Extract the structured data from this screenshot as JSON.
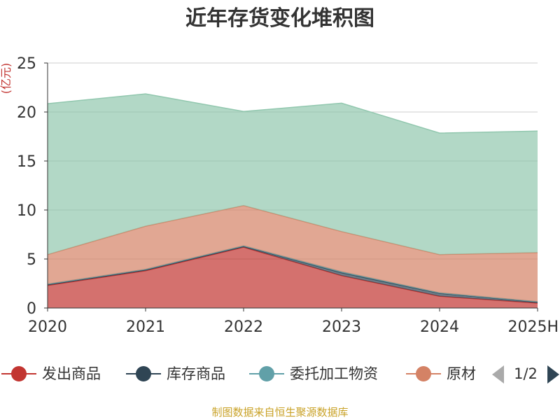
{
  "chart_data": {
    "type": "area",
    "stacked": true,
    "title": "近年存货变化堆积图",
    "ylabel": "(亿元)",
    "ylim": [
      0,
      25
    ],
    "yticks": [
      0,
      5,
      10,
      15,
      20,
      25
    ],
    "categories": [
      "2020",
      "2021",
      "2022",
      "2023",
      "2024",
      "2025H"
    ],
    "grid": true,
    "series": [
      {
        "name": "发出商品",
        "color": "#c23531",
        "values": [
          2.3,
          3.8,
          6.2,
          3.3,
          1.2,
          0.5
        ]
      },
      {
        "name": "库存商品",
        "color": "#2f4554",
        "values": [
          0.1,
          0.1,
          0.1,
          0.3,
          0.3,
          0.1
        ]
      },
      {
        "name": "委托加工物资",
        "color": "#61a0a8",
        "values": [
          0.05,
          0.05,
          0.05,
          0.1,
          0.05,
          0.05
        ]
      },
      {
        "name": "原材料",
        "color": "#d48265",
        "values": [
          3.0,
          4.4,
          4.1,
          4.1,
          3.9,
          5.0
        ]
      },
      {
        "name": "",
        "color": "#91c7ae",
        "values": [
          15.4,
          13.5,
          9.6,
          13.1,
          12.4,
          12.4
        ]
      }
    ],
    "legend": {
      "position": "bottom",
      "visible_labels": [
        "发出商品",
        "库存商品",
        "委托加工物资",
        "原材"
      ],
      "page_indicator": "1/2"
    }
  },
  "footer": "制图数据来自恒生聚源数据库"
}
